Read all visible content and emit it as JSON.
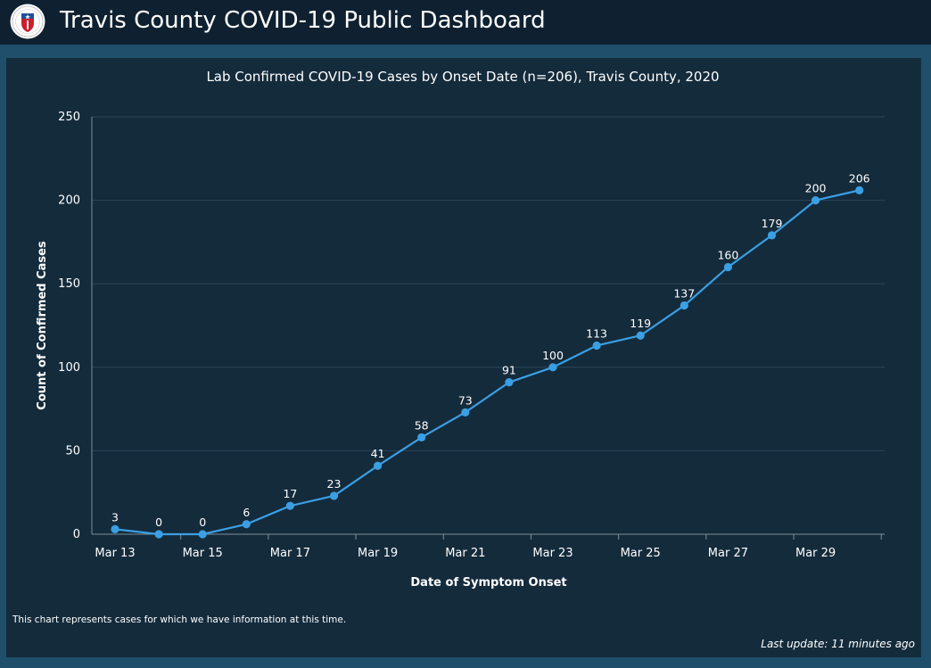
{
  "header": {
    "title": "Travis County COVID-19 Public Dashboard",
    "logo_icon": "travis-county-seal-icon"
  },
  "footer": {
    "note": "This chart represents cases for which we have information at this time.",
    "last_update": "Last update: 11 minutes ago"
  },
  "colors": {
    "header_bg": "#0f2130",
    "page_bg": "#1f4f6a",
    "panel_bg": "#142b3c",
    "series": "#3b9fe3"
  },
  "chart_data": {
    "type": "line",
    "title": "Lab Confirmed COVID-19 Cases by Onset Date (n=206), Travis County, 2020",
    "xlabel": "Date of Symptom Onset",
    "ylabel": "Count of Confirmed Cases",
    "ylim": [
      0,
      250
    ],
    "yticks": [
      "0",
      "50",
      "100",
      "150",
      "200",
      "250"
    ],
    "grid": true,
    "x": [
      "Mar 13",
      "Mar 14",
      "Mar 15",
      "Mar 16",
      "Mar 17",
      "Mar 18",
      "Mar 19",
      "Mar 20",
      "Mar 21",
      "Mar 22",
      "Mar 23",
      "Mar 24",
      "Mar 25",
      "Mar 26",
      "Mar 27",
      "Mar 28",
      "Mar 29",
      "Mar 30"
    ],
    "xticks": [
      "Mar 13",
      "Mar 15",
      "Mar 17",
      "Mar 19",
      "Mar 21",
      "Mar 23",
      "Mar 25",
      "Mar 27",
      "Mar 29"
    ],
    "series": [
      {
        "values": [
          3,
          0,
          0,
          6,
          17,
          23,
          41,
          58,
          73,
          91,
          100,
          113,
          119,
          137,
          160,
          179,
          200,
          206
        ],
        "data_labels": [
          "3",
          "0",
          "0",
          "6",
          "17",
          "23",
          "41",
          "58",
          "73",
          "91",
          "100",
          "113",
          "119",
          "137",
          "160",
          "179",
          "200",
          "206"
        ]
      }
    ]
  }
}
